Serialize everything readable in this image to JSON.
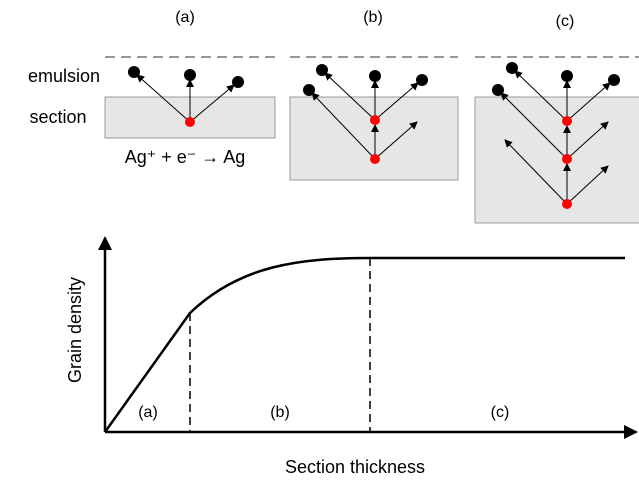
{
  "panels": [
    {
      "label": "(a)"
    },
    {
      "label": "(b)"
    },
    {
      "label": "(c)"
    }
  ],
  "layers": {
    "emulsion": "emulsion",
    "section": "section"
  },
  "equation": "Ag⁺ + e⁻ → Ag",
  "graph": {
    "y_label": "Grain density",
    "x_label": "Section thickness",
    "regions": [
      "(a)",
      "(b)",
      "(c)"
    ]
  }
}
